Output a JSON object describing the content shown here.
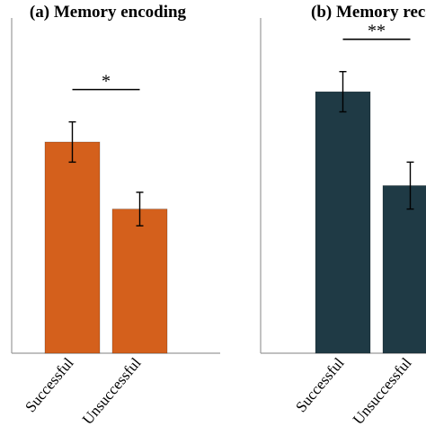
{
  "chart_data": [
    {
      "type": "bar",
      "title": "(a) Memory encoding",
      "categories": [
        "Successful",
        "Unsuccessful"
      ],
      "values": [
        6.3,
        4.3
      ],
      "errors": [
        0.6,
        0.5
      ],
      "ylim": [
        0,
        10
      ],
      "color": "#d4601c",
      "significance": "*",
      "grid": false
    },
    {
      "type": "bar",
      "title": "(b) Memory recall",
      "categories": [
        "Successful",
        "Unsuccessful"
      ],
      "values": [
        7.8,
        5.0
      ],
      "errors": [
        0.6,
        0.7
      ],
      "ylim": [
        0,
        10
      ],
      "color": "#1f3a45",
      "significance": "**",
      "grid": false
    }
  ]
}
